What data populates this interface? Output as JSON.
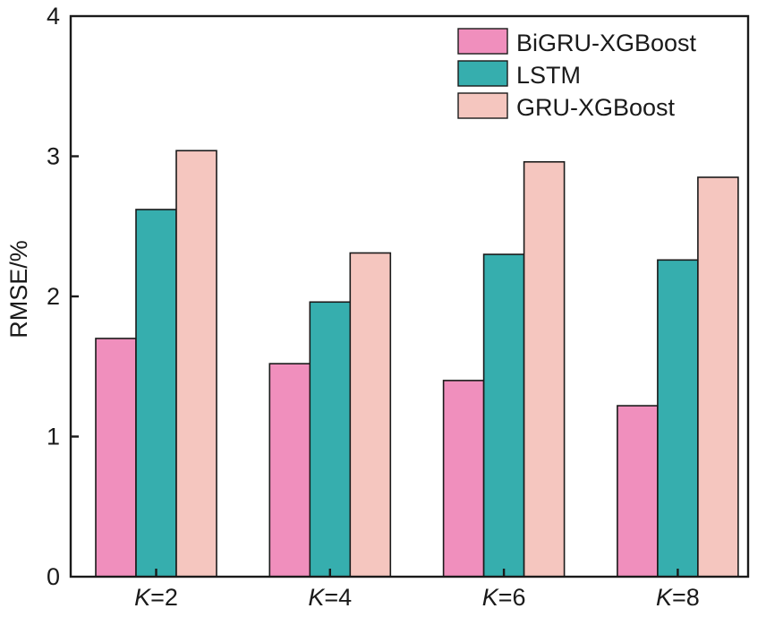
{
  "chart_data": {
    "type": "bar",
    "categories": [
      {
        "prefix": "K",
        "suffix": "=2"
      },
      {
        "prefix": "K",
        "suffix": "=4"
      },
      {
        "prefix": "K",
        "suffix": "=6"
      },
      {
        "prefix": "K",
        "suffix": "=8"
      }
    ],
    "series": [
      {
        "name": "BiGRU-XGBoost",
        "color": "#f08fbd",
        "values": [
          1.7,
          1.52,
          1.4,
          1.22
        ]
      },
      {
        "name": "LSTM",
        "color": "#36aeae",
        "values": [
          2.62,
          1.96,
          2.3,
          2.26
        ]
      },
      {
        "name": "GRU-XGBoost",
        "color": "#f5c6bf",
        "values": [
          3.04,
          2.31,
          2.96,
          2.85
        ]
      }
    ],
    "title": "",
    "xlabel": "",
    "ylabel": "RMSE/%",
    "ylim": [
      0,
      4
    ],
    "yticks": [
      0,
      1,
      2,
      3,
      4
    ],
    "grid": false,
    "legend_position": "top-right"
  }
}
